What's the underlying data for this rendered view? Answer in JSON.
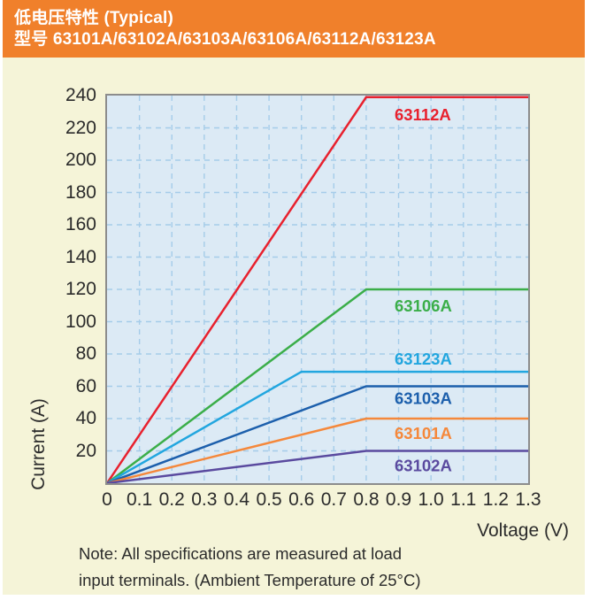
{
  "colors": {
    "header_bg": "#F0802B",
    "header_text": "#FFFFFF",
    "page_bg": "#F5F4D8",
    "plot_bg": "#DCEAF5",
    "plot_border": "#8C8C8C",
    "grid": "#A5CCE9",
    "text": "#2B2B2B"
  },
  "chart_data": {
    "type": "line",
    "title": "低电压特性 (Typical)",
    "subtitle": "型号 63101A/63102A/63103A/63106A/63112A/63123A",
    "xlabel": "Voltage (V)",
    "ylabel": "Current (A)",
    "xlim": [
      0,
      1.3
    ],
    "ylim": [
      0,
      240
    ],
    "x_ticks": [
      "0",
      "0.1",
      "0.2",
      "0.3",
      "0.4",
      "0.5",
      "0.6",
      "0.7",
      "0.8",
      "0.9",
      "1.0",
      "1.1",
      "1.2",
      "1.3"
    ],
    "y_ticks": [
      "240",
      "220",
      "200",
      "180",
      "160",
      "140",
      "120",
      "100",
      "80",
      "60",
      "40",
      "20"
    ],
    "grid": "dashed",
    "legend_position": "inline-labels",
    "series": [
      {
        "name": "63112A",
        "color": "#E8212E",
        "points": [
          [
            0,
            0
          ],
          [
            0.8,
            240
          ],
          [
            1.3,
            240
          ]
        ]
      },
      {
        "name": "63106A",
        "color": "#3BAE49",
        "points": [
          [
            0,
            0
          ],
          [
            0.8,
            120
          ],
          [
            1.3,
            120
          ]
        ]
      },
      {
        "name": "63123A",
        "color": "#22A6DF",
        "points": [
          [
            0,
            0
          ],
          [
            0.6,
            69
          ],
          [
            1.3,
            69
          ]
        ]
      },
      {
        "name": "63103A",
        "color": "#1C5FAC",
        "points": [
          [
            0,
            0
          ],
          [
            0.8,
            60
          ],
          [
            1.3,
            60
          ]
        ]
      },
      {
        "name": "63101A",
        "color": "#F5883B",
        "points": [
          [
            0,
            0
          ],
          [
            0.8,
            40
          ],
          [
            1.3,
            40
          ]
        ]
      },
      {
        "name": "63102A",
        "color": "#5A4A9F",
        "points": [
          [
            0,
            0
          ],
          [
            0.8,
            20
          ],
          [
            1.3,
            20
          ]
        ]
      }
    ],
    "note_lines": [
      "Note: All specifications are measured at load",
      "input terminals. (Ambient Temperature of 25°C)"
    ]
  }
}
